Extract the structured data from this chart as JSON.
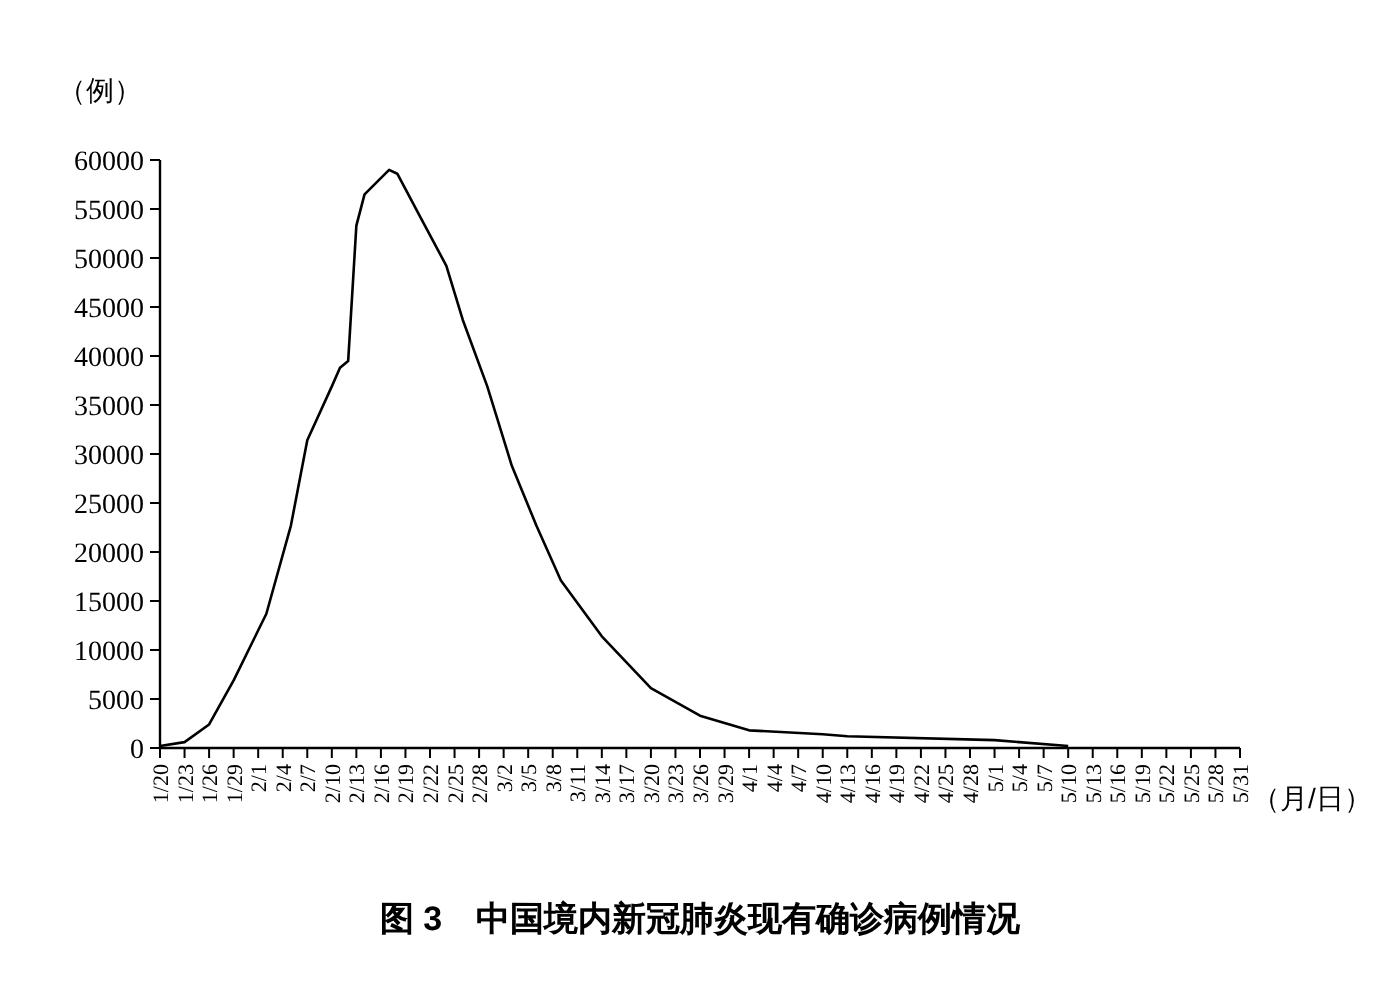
{
  "chart_data": {
    "type": "line",
    "title": "图 3　中国境内新冠肺炎现有确诊病例情况",
    "ylabel": "（例）",
    "xlabel": "（月/日）",
    "x": [
      "--01-20",
      "--01-23",
      "--01-26",
      "--01-29",
      "--02-02",
      "--02-05",
      "--02-07",
      "--02-10",
      "--02-11",
      "--02-12",
      "--02-13",
      "--02-14",
      "--02-17",
      "--02-18",
      "--02-21",
      "--02-24",
      "--02-26",
      "--02-29",
      "--03-03",
      "--03-06",
      "--03-09",
      "--03-14",
      "--03-20",
      "--03-26",
      "--04-01",
      "--04-10",
      "--04-13",
      "--05-01",
      "--05-10"
    ],
    "series": [
      {
        "color": "#000000",
        "values": [
          200,
          600,
          2400,
          6900,
          13700,
          22700,
          31400,
          36900,
          38800,
          39500,
          53300,
          56500,
          59000,
          58600,
          53900,
          49200,
          43700,
          36900,
          28800,
          22700,
          17100,
          11400,
          6100,
          3300,
          1800,
          1400,
          1200,
          800,
          200
        ]
      }
    ],
    "xlim": [
      "--01-20",
      "--05-31"
    ],
    "ylim": [
      0,
      60000
    ],
    "yticks": [
      0,
      5000,
      10000,
      15000,
      20000,
      25000,
      30000,
      35000,
      40000,
      45000,
      50000,
      55000,
      60000
    ],
    "xticks": [
      {
        "value": "--01-20",
        "label": "1/20"
      },
      {
        "value": "--01-23",
        "label": "1/23"
      },
      {
        "value": "--01-26",
        "label": "1/26"
      },
      {
        "value": "--01-29",
        "label": "1/29"
      },
      {
        "value": "--02-01",
        "label": "2/1"
      },
      {
        "value": "--02-04",
        "label": "2/4"
      },
      {
        "value": "--02-07",
        "label": "2/7"
      },
      {
        "value": "--02-10",
        "label": "2/10"
      },
      {
        "value": "--02-13",
        "label": "2/13"
      },
      {
        "value": "--02-16",
        "label": "2/16"
      },
      {
        "value": "--02-19",
        "label": "2/19"
      },
      {
        "value": "--02-22",
        "label": "2/22"
      },
      {
        "value": "--02-25",
        "label": "2/25"
      },
      {
        "value": "--02-28",
        "label": "2/28"
      },
      {
        "value": "--03-02",
        "label": "3/2"
      },
      {
        "value": "--03-05",
        "label": "3/5"
      },
      {
        "value": "--03-08",
        "label": "3/8"
      },
      {
        "value": "--03-11",
        "label": "3/11"
      },
      {
        "value": "--03-14",
        "label": "3/14"
      },
      {
        "value": "--03-17",
        "label": "3/17"
      },
      {
        "value": "--03-20",
        "label": "3/20"
      },
      {
        "value": "--03-23",
        "label": "3/23"
      },
      {
        "value": "--03-26",
        "label": "3/26"
      },
      {
        "value": "--03-29",
        "label": "3/29"
      },
      {
        "value": "--04-01",
        "label": "4/1"
      },
      {
        "value": "--04-04",
        "label": "4/4"
      },
      {
        "value": "--04-07",
        "label": "4/7"
      },
      {
        "value": "--04-10",
        "label": "4/10"
      },
      {
        "value": "--04-13",
        "label": "4/13"
      },
      {
        "value": "--04-16",
        "label": "4/16"
      },
      {
        "value": "--04-19",
        "label": "4/19"
      },
      {
        "value": "--04-22",
        "label": "4/22"
      },
      {
        "value": "--04-25",
        "label": "4/25"
      },
      {
        "value": "--04-28",
        "label": "4/28"
      },
      {
        "value": "--05-01",
        "label": "5/1"
      },
      {
        "value": "--05-04",
        "label": "5/4"
      },
      {
        "value": "--05-07",
        "label": "5/7"
      },
      {
        "value": "--05-10",
        "label": "5/10"
      },
      {
        "value": "--05-13",
        "label": "5/13"
      },
      {
        "value": "--05-16",
        "label": "5/16"
      },
      {
        "value": "--05-19",
        "label": "5/19"
      },
      {
        "value": "--05-22",
        "label": "5/22"
      },
      {
        "value": "--05-25",
        "label": "5/25"
      },
      {
        "value": "--05-28",
        "label": "5/28"
      },
      {
        "value": "--05-31",
        "label": "5/31"
      }
    ],
    "marker": "none",
    "line_style": "solid"
  }
}
